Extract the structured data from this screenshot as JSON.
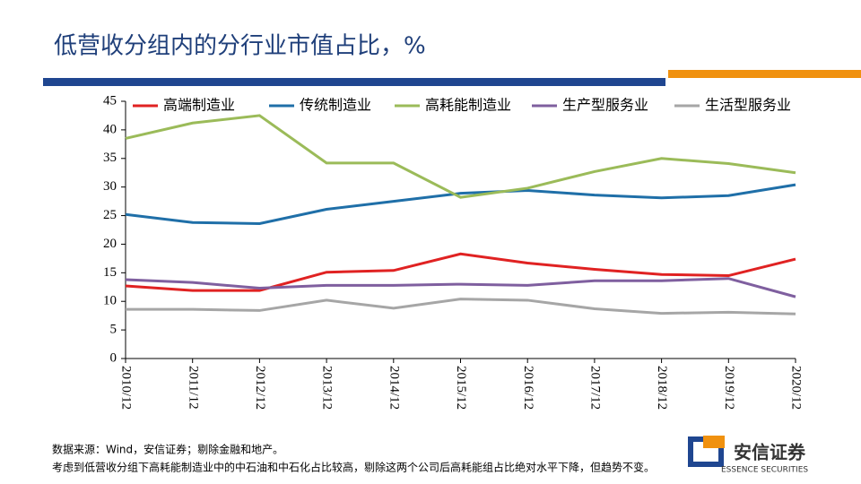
{
  "chart_data": {
    "type": "line",
    "title": "低营收分组内的分行业市值占比，%",
    "categories": [
      "2010/12",
      "2011/12",
      "2012/12",
      "2013/12",
      "2014/12",
      "2015/12",
      "2016/12",
      "2017/12",
      "2018/12",
      "2019/12",
      "2020/12"
    ],
    "series": [
      {
        "name": "高端制造业",
        "color": "#e02222",
        "values": [
          12.7,
          11.9,
          11.9,
          15.1,
          15.4,
          18.3,
          16.7,
          15.6,
          14.7,
          14.5,
          17.4
        ]
      },
      {
        "name": "传统制造业",
        "color": "#1f6fa8",
        "values": [
          25.2,
          23.8,
          23.6,
          26.1,
          27.5,
          28.9,
          29.4,
          28.6,
          28.1,
          28.5,
          30.4
        ]
      },
      {
        "name": "高耗能制造业",
        "color": "#9bbb59",
        "values": [
          38.5,
          41.2,
          42.5,
          34.2,
          34.2,
          28.2,
          29.8,
          32.7,
          35.0,
          34.1,
          32.5
        ]
      },
      {
        "name": "生产型服务业",
        "color": "#7f5f9f",
        "values": [
          13.8,
          13.3,
          12.3,
          12.8,
          12.8,
          13.0,
          12.8,
          13.6,
          13.6,
          14.0,
          10.8
        ]
      },
      {
        "name": "生活型服务业",
        "color": "#a6a6a6",
        "values": [
          8.6,
          8.6,
          8.4,
          10.2,
          8.8,
          10.4,
          10.2,
          8.7,
          7.9,
          8.1,
          7.8
        ]
      }
    ],
    "ylim": [
      0,
      45
    ],
    "yticks": [
      0,
      5,
      10,
      15,
      20,
      25,
      30,
      35,
      40,
      45
    ],
    "grid": false,
    "legend": "top"
  },
  "notes": [
    "数据来源：Wind，安信证券；剔除金融和地产。",
    "考虑到低营收分组下高耗能制造业中的中石油和中石化占比较高，剔除这两个公司后高耗能组占比绝对水平下降，但趋势不变。"
  ],
  "logo": {
    "name": "安信证券",
    "english": "ESSENCE SECURITIES"
  }
}
